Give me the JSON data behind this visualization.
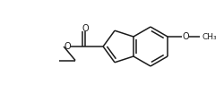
{
  "bg_color": "#ffffff",
  "line_color": "#1a1a1a",
  "lw": 1.1,
  "figsize": [
    2.51,
    1.04
  ],
  "dpi": 100,
  "xlim": [
    0,
    251
  ],
  "ylim": [
    0,
    104
  ]
}
